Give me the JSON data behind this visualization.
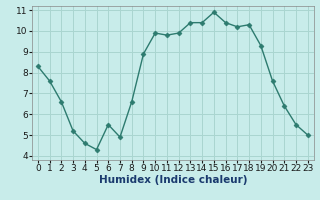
{
  "x": [
    0,
    1,
    2,
    3,
    4,
    5,
    6,
    7,
    8,
    9,
    10,
    11,
    12,
    13,
    14,
    15,
    16,
    17,
    18,
    19,
    20,
    21,
    22,
    23
  ],
  "y": [
    8.3,
    7.6,
    6.6,
    5.2,
    4.6,
    4.3,
    5.5,
    4.9,
    6.6,
    8.9,
    9.9,
    9.8,
    9.9,
    10.4,
    10.4,
    10.9,
    10.4,
    10.2,
    10.3,
    9.3,
    7.6,
    6.4,
    5.5,
    5.0
  ],
  "xlabel": "Humidex (Indice chaleur)",
  "xlim": [
    -0.5,
    23.5
  ],
  "ylim": [
    3.8,
    11.2
  ],
  "yticks": [
    4,
    5,
    6,
    7,
    8,
    9,
    10,
    11
  ],
  "xticks": [
    0,
    1,
    2,
    3,
    4,
    5,
    6,
    7,
    8,
    9,
    10,
    11,
    12,
    13,
    14,
    15,
    16,
    17,
    18,
    19,
    20,
    21,
    22,
    23
  ],
  "line_color": "#2d7b6f",
  "marker": "D",
  "marker_size": 2.5,
  "bg_color": "#c8ecea",
  "grid_color": "#aad5d0",
  "xlabel_fontsize": 7.5,
  "tick_fontsize": 6.5,
  "xlabel_color": "#1a3a6e",
  "line_width": 1.0
}
